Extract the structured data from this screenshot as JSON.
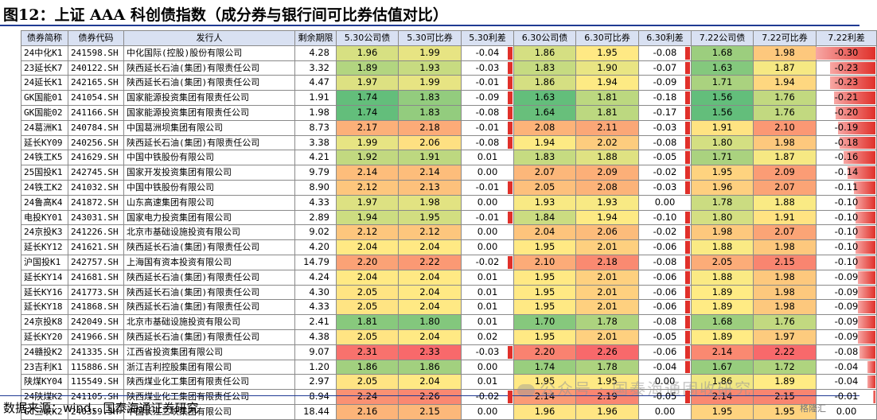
{
  "title": "图12：上证 AAA 科创债指数（成分券与银行间可比券估值对比）",
  "headers": [
    "债券简称",
    "债券代码",
    "发行人",
    "剩余期限",
    "5.30公司债",
    "5.30可比券",
    "5.30利差",
    "6.30公司债",
    "6.30可比券",
    "6.30利差",
    "7.22公司债",
    "7.22可比券",
    "7.22利差"
  ],
  "rows": [
    [
      "24中化K1",
      "241598.SH",
      "中化国际(控股)股份有限公司",
      "4.28",
      "1.96",
      "1.99",
      "-0.04",
      "1.86",
      "1.95",
      "-0.08",
      "1.68",
      "1.98",
      "-0.30"
    ],
    [
      "23延长K7",
      "240122.SH",
      "陕西延长石油(集团)有限责任公司",
      "3.32",
      "1.89",
      "1.93",
      "-0.03",
      "1.83",
      "1.90",
      "-0.07",
      "1.63",
      "1.87",
      "-0.23"
    ],
    [
      "24延长K1",
      "242165.SH",
      "陕西延长石油(集团)有限责任公司",
      "4.47",
      "1.97",
      "1.99",
      "-0.01",
      "1.86",
      "1.94",
      "-0.09",
      "1.71",
      "1.94",
      "-0.23"
    ],
    [
      "GK国能01",
      "241054.SH",
      "国家能源投资集团有限责任公司",
      "1.91",
      "1.74",
      "1.83",
      "-0.09",
      "1.63",
      "1.81",
      "-0.18",
      "1.56",
      "1.76",
      "-0.21"
    ],
    [
      "GK国能02",
      "241166.SH",
      "国家能源投资集团有限责任公司",
      "1.98",
      "1.74",
      "1.83",
      "-0.08",
      "1.64",
      "1.81",
      "-0.17",
      "1.56",
      "1.76",
      "-0.20"
    ],
    [
      "24葛洲K1",
      "240784.SH",
      "中国葛洲坝集团有限公司",
      "8.73",
      "2.17",
      "2.18",
      "-0.01",
      "2.08",
      "2.11",
      "-0.03",
      "1.91",
      "2.10",
      "-0.19"
    ],
    [
      "延长KY09",
      "240256.SH",
      "陕西延长石油(集团)有限责任公司",
      "3.38",
      "1.99",
      "2.06",
      "-0.08",
      "1.94",
      "2.02",
      "-0.08",
      "1.80",
      "1.98",
      "-0.18"
    ],
    [
      "24铁工K5",
      "241629.SH",
      "中国中铁股份有限公司",
      "4.21",
      "1.92",
      "1.91",
      "0.01",
      "1.83",
      "1.88",
      "-0.05",
      "1.71",
      "1.87",
      "-0.16"
    ],
    [
      "25国投K1",
      "242745.SH",
      "国家开发投资集团有限公司",
      "9.79",
      "2.14",
      "2.14",
      "0.00",
      "2.07",
      "2.09",
      "-0.02",
      "1.95",
      "2.09",
      "-0.14"
    ],
    [
      "24铁工K2",
      "241032.SH",
      "中国中铁股份有限公司",
      "8.90",
      "2.12",
      "2.13",
      "-0.01",
      "2.05",
      "2.08",
      "-0.03",
      "1.96",
      "2.07",
      "-0.11"
    ],
    [
      "24鲁高K4",
      "241872.SH",
      "山东高速集团有限公司",
      "4.33",
      "1.97",
      "1.98",
      "0.00",
      "1.93",
      "1.93",
      "0.00",
      "1.78",
      "1.88",
      "-0.10"
    ],
    [
      "电投KY01",
      "243031.SH",
      "国家电力投资集团有限公司",
      "2.89",
      "1.94",
      "1.95",
      "-0.01",
      "1.84",
      "1.94",
      "-0.10",
      "1.80",
      "1.91",
      "-0.10"
    ],
    [
      "24京投K3",
      "241226.SH",
      "北京市基础设施投资有限公司",
      "9.02",
      "2.12",
      "2.12",
      "0.00",
      "2.04",
      "2.06",
      "-0.02",
      "1.98",
      "2.07",
      "-0.10"
    ],
    [
      "延长KY12",
      "241621.SH",
      "陕西延长石油(集团)有限责任公司",
      "4.20",
      "2.04",
      "2.04",
      "0.00",
      "1.95",
      "2.01",
      "-0.06",
      "1.88",
      "1.98",
      "-0.10"
    ],
    [
      "沪国投K1",
      "242757.SH",
      "上海国有资本投资有限公司",
      "14.79",
      "2.20",
      "2.22",
      "-0.02",
      "2.10",
      "2.18",
      "-0.08",
      "2.05",
      "2.15",
      "-0.10"
    ],
    [
      "延长KY14",
      "241681.SH",
      "陕西延长石油(集团)有限责任公司",
      "4.24",
      "2.04",
      "2.04",
      "0.01",
      "1.95",
      "2.01",
      "-0.06",
      "1.88",
      "1.98",
      "-0.09"
    ],
    [
      "延长KY16",
      "241773.SH",
      "陕西延长石油(集团)有限责任公司",
      "4.30",
      "2.05",
      "2.04",
      "0.01",
      "1.95",
      "2.01",
      "-0.06",
      "1.89",
      "1.98",
      "-0.09"
    ],
    [
      "延长KY18",
      "241868.SH",
      "陕西延长石油(集团)有限责任公司",
      "4.33",
      "2.05",
      "2.04",
      "0.01",
      "1.95",
      "2.01",
      "-0.06",
      "1.89",
      "1.98",
      "-0.09"
    ],
    [
      "24京投K8",
      "242049.SH",
      "北京市基础设施投资有限公司",
      "2.41",
      "1.81",
      "1.80",
      "0.01",
      "1.70",
      "1.78",
      "-0.08",
      "1.68",
      "1.76",
      "-0.09"
    ],
    [
      "延长KY20",
      "241966.SH",
      "陕西延长石油(集团)有限责任公司",
      "4.38",
      "2.05",
      "2.04",
      "0.02",
      "1.95",
      "2.01",
      "-0.05",
      "1.89",
      "1.97",
      "-0.09"
    ],
    [
      "24赣投K2",
      "241335.SH",
      "江西省投资集团有限公司",
      "9.07",
      "2.31",
      "2.33",
      "-0.03",
      "2.20",
      "2.26",
      "-0.06",
      "2.14",
      "2.22",
      "-0.08"
    ],
    [
      "23吉利K1",
      "115886.SH",
      "浙江吉利控股集团有限公司",
      "1.20",
      "1.86",
      "1.86",
      "0.00",
      "1.74",
      "1.78",
      "-0.04",
      "1.67",
      "1.72",
      "-0.04"
    ],
    [
      "陕煤KY04",
      "115549.SH",
      "陕西煤业化工集团有限责任公司",
      "2.97",
      "2.05",
      "2.04",
      "0.01",
      "1.95",
      "1.95",
      "0.00",
      "1.86",
      "1.89",
      "-0.04"
    ],
    [
      "24陕煤K2",
      "241105.SH",
      "陕西煤业化工集团有限责任公司",
      "8.94",
      "2.24",
      "2.26",
      "-0.02",
      "2.14",
      "2.19",
      "-0.05",
      "2.14",
      "2.15",
      "-0.01"
    ],
    [
      "GC三峡K2",
      "240359.SH",
      "中国长江三峡集团有限公司",
      "18.44",
      "2.16",
      "2.15",
      "0.00",
      "1.96",
      "1.96",
      "0.00",
      "1.95",
      "1.95",
      "0.00"
    ]
  ],
  "footer": "数据来源：wind，国泰海通证券研究",
  "watermark": "公众号 · 国泰海通固收研究",
  "corner_logo": "格隆汇",
  "colors": {
    "title_rule": "#1f3a93",
    "header_bg": "#d9e1f2",
    "diff_bar": "#e0302a",
    "scale_low": "#63be7b",
    "scale_mid": "#ffeb84",
    "scale_high": "#f8696b"
  }
}
